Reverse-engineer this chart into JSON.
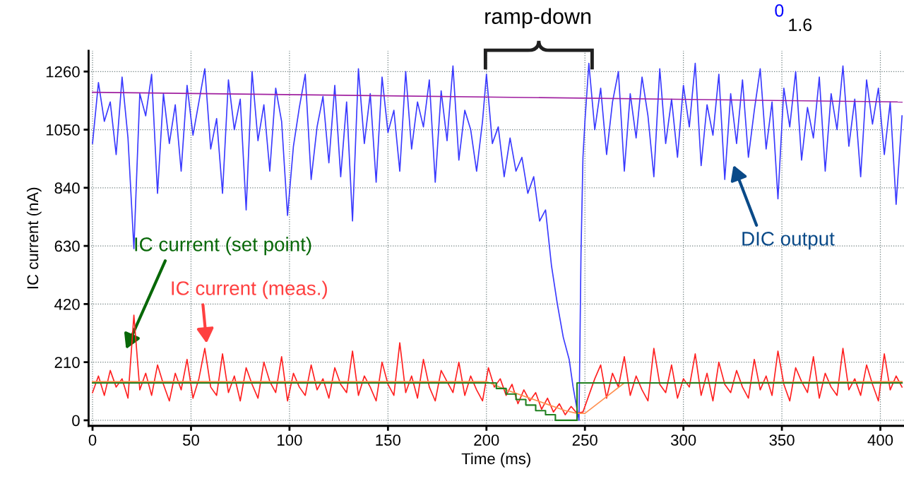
{
  "chart_data": {
    "type": "line",
    "xlabel": "Time (ms)",
    "ylabel": "IC current (nA)",
    "xlim": [
      -2,
      412
    ],
    "ylim": [
      -20,
      1335
    ],
    "xticks": [
      0,
      50,
      100,
      150,
      200,
      250,
      300,
      350,
      400
    ],
    "yticks": [
      0,
      210,
      420,
      630,
      840,
      1050,
      1260
    ],
    "grid": true,
    "legend": false,
    "annotations": [
      "ramp-down",
      "0",
      "1.6"
    ],
    "series": [
      {
        "name": "DIC output",
        "color": "#3a3aff",
        "x": [
          0,
          3,
          6,
          9,
          12,
          15,
          18,
          21,
          24,
          27,
          30,
          33,
          36,
          39,
          42,
          45,
          48,
          51,
          54,
          57,
          60,
          63,
          66,
          69,
          72,
          75,
          78,
          81,
          84,
          87,
          90,
          93,
          96,
          99,
          102,
          105,
          108,
          111,
          114,
          117,
          120,
          123,
          126,
          129,
          132,
          135,
          138,
          141,
          144,
          147,
          150,
          153,
          156,
          159,
          162,
          165,
          168,
          171,
          174,
          177,
          180,
          183,
          186,
          189,
          192,
          195,
          198,
          200,
          203,
          206,
          209,
          212,
          215,
          218,
          221,
          224,
          227,
          230,
          233,
          236,
          239,
          242,
          244,
          246,
          247,
          248,
          249,
          250,
          252,
          255,
          258,
          261,
          264,
          267,
          270,
          273,
          276,
          279,
          282,
          285,
          288,
          291,
          294,
          297,
          300,
          303,
          306,
          309,
          312,
          315,
          318,
          321,
          324,
          327,
          330,
          333,
          336,
          339,
          342,
          345,
          348,
          351,
          354,
          357,
          360,
          363,
          366,
          369,
          372,
          375,
          378,
          381,
          384,
          387,
          390,
          393,
          396,
          399,
          402,
          405,
          408,
          411
        ],
        "values": [
          1000,
          1220,
          1080,
          1150,
          960,
          1240,
          1020,
          620,
          1180,
          1100,
          1250,
          820,
          1180,
          1000,
          1140,
          900,
          1210,
          1030,
          1150,
          1270,
          980,
          1090,
          820,
          1230,
          1050,
          1160,
          760,
          1260,
          1010,
          1140,
          900,
          1200,
          1080,
          740,
          990,
          1130,
          1250,
          870,
          1060,
          1170,
          930,
          1210,
          880,
          1150,
          720,
          1270,
          1000,
          1180,
          860,
          1240,
          1040,
          1120,
          900,
          1260,
          980,
          1150,
          1060,
          1230,
          860,
          1190,
          1010,
          1280,
          940,
          1120,
          1050,
          900,
          1080,
          1250,
          1000,
          1060,
          880,
          1020,
          900,
          950,
          820,
          880,
          720,
          760,
          560,
          420,
          300,
          220,
          120,
          40,
          0,
          600,
          950,
          1080,
          1290,
          1050,
          1200,
          960,
          1150,
          1260,
          900,
          1180,
          1020,
          1240,
          1100,
          880,
          1270,
          1000,
          1160,
          950,
          1210,
          1060,
          1290,
          920,
          1140,
          1030,
          1250,
          870,
          1180,
          1000,
          1230,
          950,
          1120,
          1270,
          980,
          1150,
          800,
          1200,
          1060,
          1260,
          940,
          1130,
          1020,
          1240,
          900,
          1180,
          1050,
          1280,
          990,
          1160,
          880,
          1230,
          1070,
          1200,
          960,
          1150,
          780,
          1100
        ]
      },
      {
        "color": "#a020a0",
        "x": [
          0,
          411
        ],
        "values": [
          1185,
          1150
        ]
      },
      {
        "name": "IC current (meas.)",
        "color": "#ff2020",
        "x": [
          0,
          3,
          6,
          9,
          12,
          15,
          18,
          21,
          24,
          27,
          30,
          33,
          36,
          39,
          42,
          45,
          48,
          51,
          54,
          57,
          60,
          63,
          66,
          69,
          72,
          75,
          78,
          81,
          84,
          87,
          90,
          93,
          96,
          99,
          102,
          105,
          108,
          111,
          114,
          117,
          120,
          123,
          126,
          129,
          132,
          135,
          138,
          141,
          144,
          147,
          150,
          153,
          156,
          159,
          162,
          165,
          168,
          171,
          174,
          177,
          180,
          183,
          186,
          189,
          192,
          195,
          198,
          201,
          204,
          207,
          210,
          213,
          216,
          219,
          222,
          225,
          228,
          231,
          234,
          237,
          240,
          243,
          246,
          249,
          252,
          255,
          258,
          261,
          264,
          267,
          270,
          273,
          276,
          279,
          282,
          285,
          288,
          291,
          294,
          297,
          300,
          303,
          306,
          309,
          312,
          315,
          318,
          321,
          324,
          327,
          330,
          333,
          336,
          339,
          342,
          345,
          348,
          351,
          354,
          357,
          360,
          363,
          366,
          369,
          372,
          375,
          378,
          381,
          384,
          387,
          390,
          393,
          396,
          399,
          402,
          405,
          408,
          411
        ],
        "values": [
          100,
          160,
          90,
          180,
          120,
          150,
          80,
          380,
          110,
          170,
          90,
          200,
          130,
          70,
          170,
          110,
          220,
          80,
          150,
          260,
          120,
          90,
          240,
          100,
          160,
          70,
          190,
          130,
          80,
          210,
          140,
          100,
          230,
          70,
          170,
          120,
          90,
          200,
          110,
          150,
          80,
          190,
          130,
          100,
          250,
          90,
          160,
          120,
          70,
          210,
          130,
          90,
          280,
          100,
          160,
          80,
          220,
          120,
          70,
          180,
          140,
          100,
          210,
          90,
          160,
          110,
          70,
          190,
          120,
          150,
          90,
          130,
          60,
          110,
          70,
          100,
          40,
          80,
          30,
          60,
          20,
          50,
          25,
          30,
          90,
          150,
          200,
          80,
          170,
          120,
          230,
          90,
          160,
          110,
          70,
          260,
          130,
          100,
          200,
          80,
          150,
          120,
          240,
          90,
          170,
          70,
          210,
          130,
          100,
          180,
          120,
          80,
          220,
          110,
          160,
          90,
          250,
          130,
          70,
          190,
          140,
          100,
          230,
          80,
          170,
          120,
          90,
          260,
          110,
          150,
          90,
          200,
          130,
          70,
          240,
          110,
          160,
          120
        ]
      },
      {
        "color": "#ff9050",
        "x": [
          0,
          200,
          210,
          220,
          230,
          240,
          246,
          250,
          260,
          270,
          411
        ],
        "values": [
          140,
          140,
          110,
          85,
          60,
          35,
          25,
          25,
          80,
          135,
          140
        ]
      },
      {
        "name": "IC current (set point)",
        "type": "step",
        "color": "#208020",
        "x": [
          0,
          200,
          205,
          210,
          215,
          220,
          225,
          230,
          235,
          246,
          411
        ],
        "values": [
          135,
          135,
          115,
          95,
          75,
          55,
          35,
          20,
          0,
          135,
          135
        ]
      }
    ]
  }
}
